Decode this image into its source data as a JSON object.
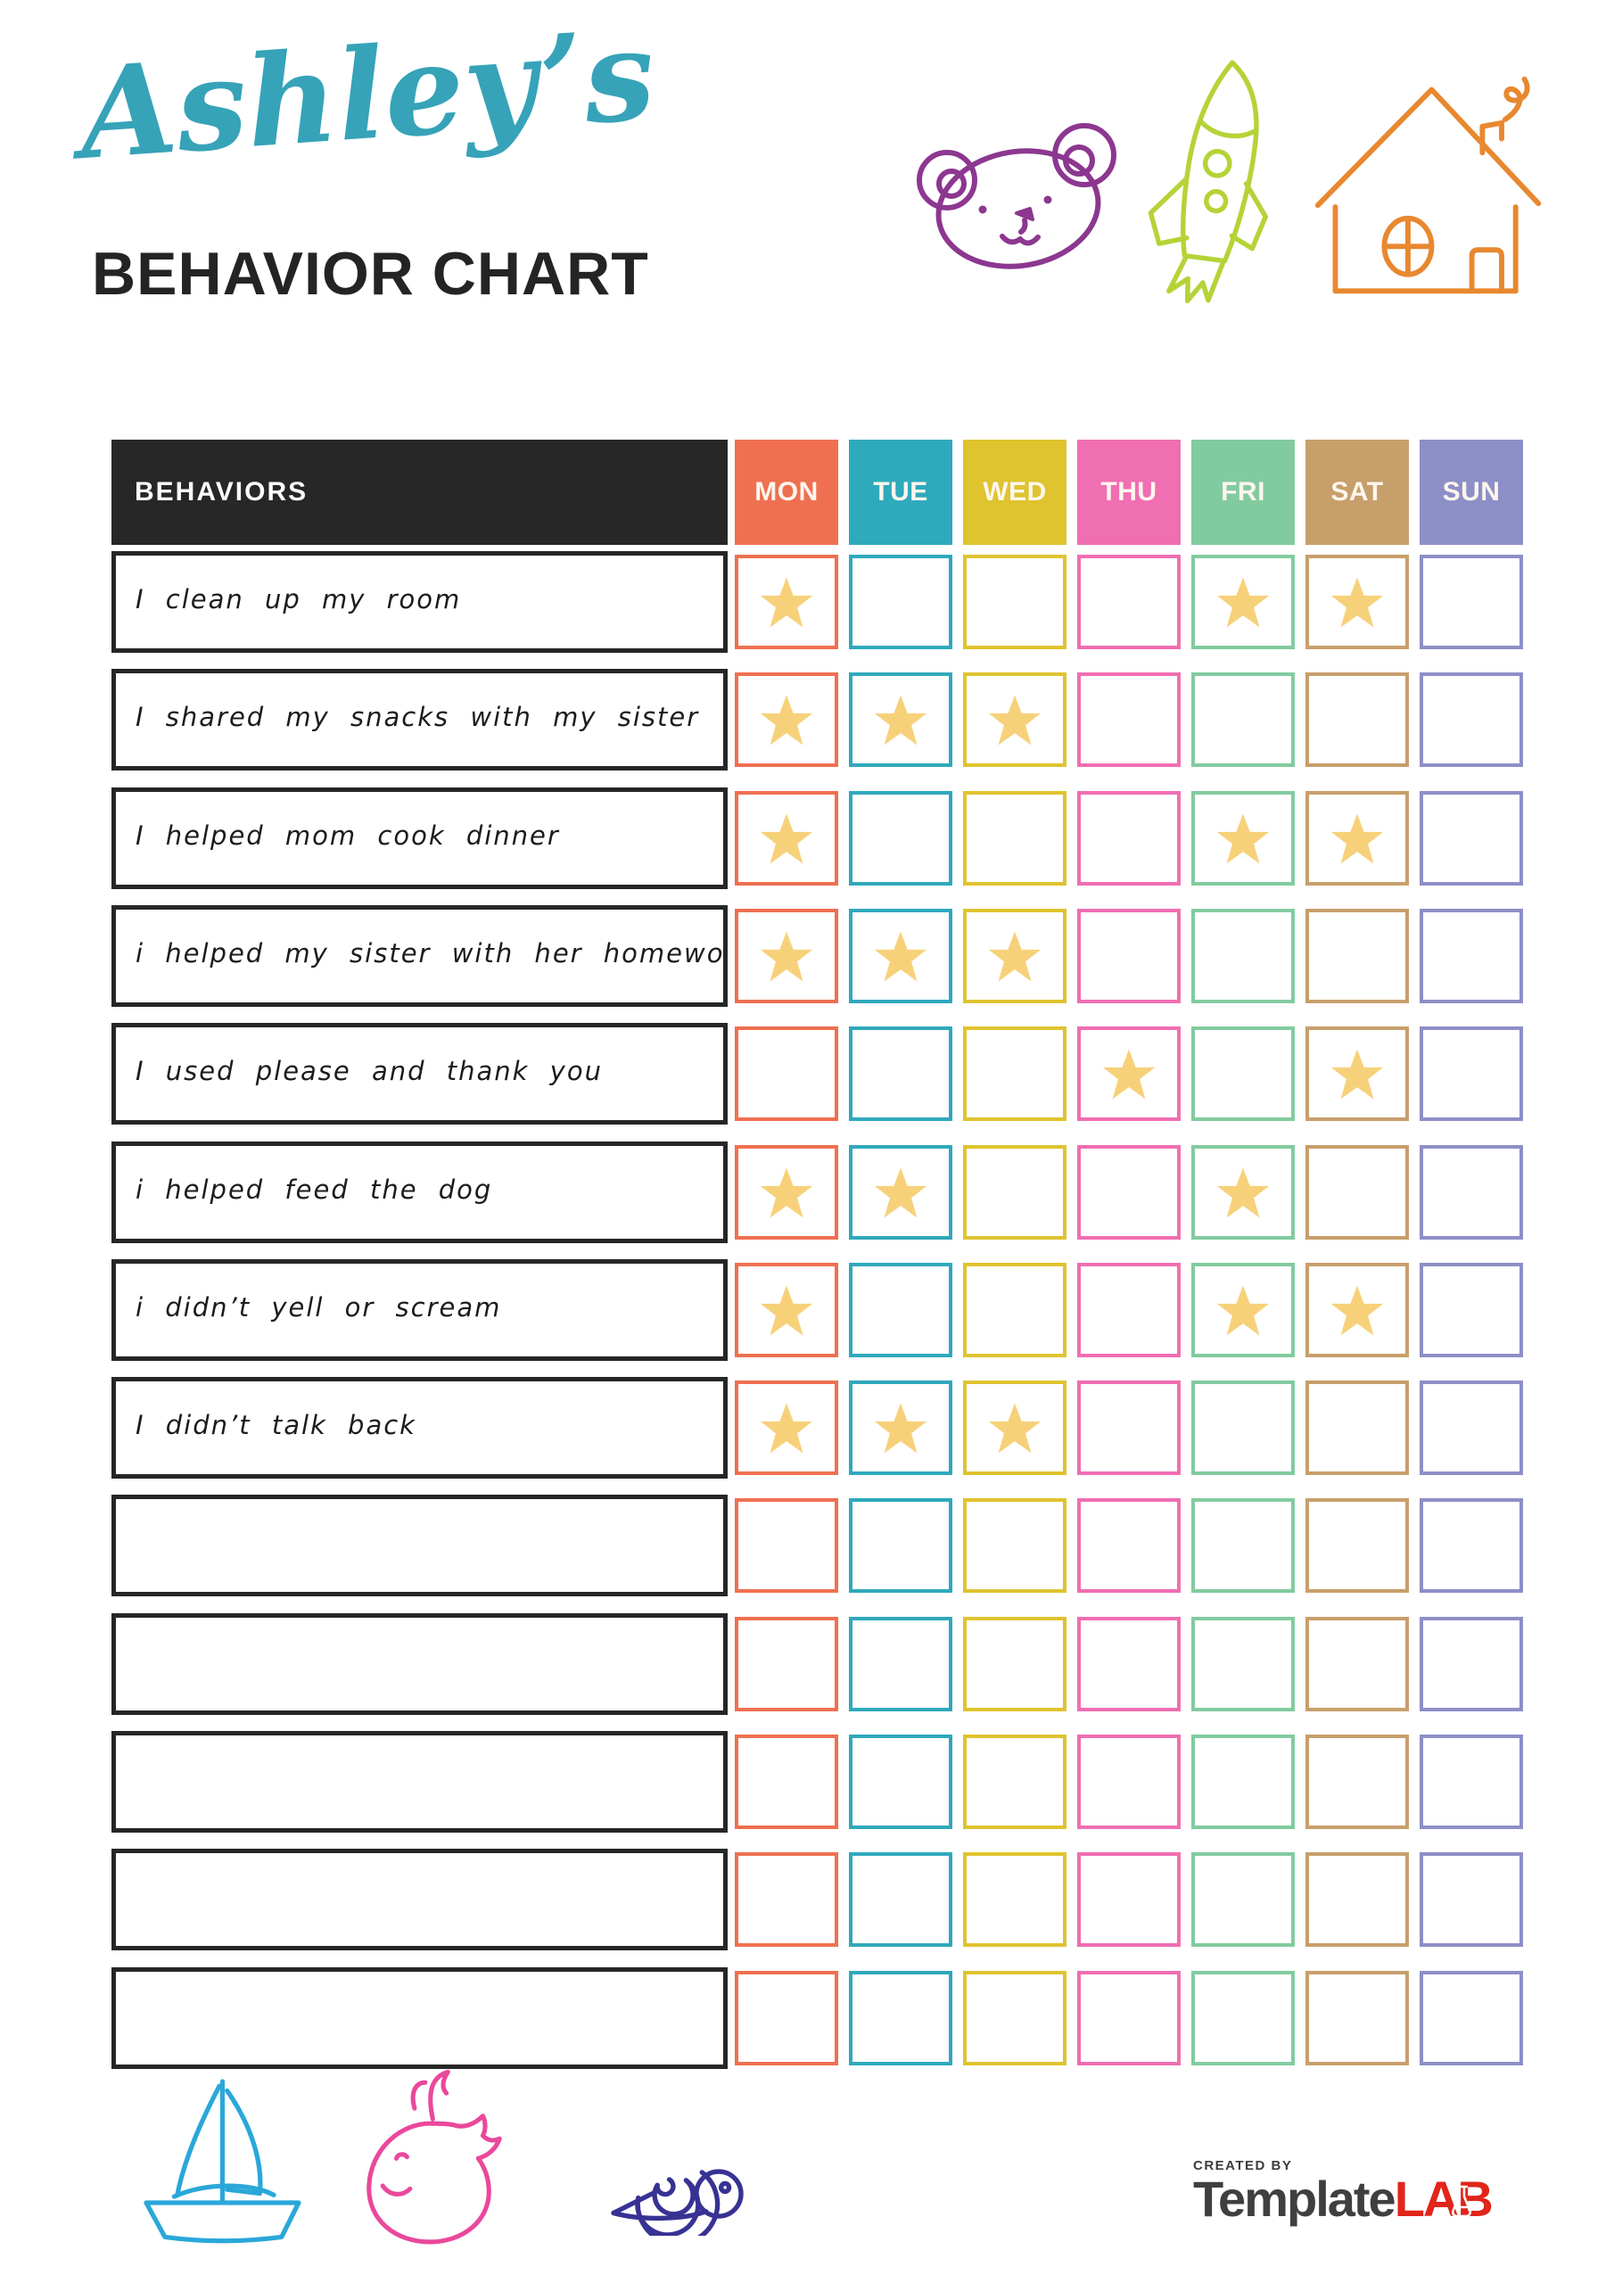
{
  "header": {
    "name_script": "Ashley’s",
    "name_color": "#36a3b8",
    "title": "BEHAVIOR CHART"
  },
  "table": {
    "behaviors_label": "BEHAVIORS",
    "header_bg": "#272727",
    "star_color": "#f7d17a",
    "days": [
      {
        "label": "MON",
        "color": "#ef7050"
      },
      {
        "label": "TUE",
        "color": "#2fa9bc"
      },
      {
        "label": "WED",
        "color": "#dfc32f"
      },
      {
        "label": "THU",
        "color": "#f06eb2"
      },
      {
        "label": "FRI",
        "color": "#82cb9f"
      },
      {
        "label": "SAT",
        "color": "#c79f6b"
      },
      {
        "label": "SUN",
        "color": "#8d8fc7"
      }
    ],
    "rows": [
      {
        "label": "I clean up my room",
        "stars": [
          "MON",
          "FRI",
          "SAT"
        ]
      },
      {
        "label": "I shared my snacks with my sister",
        "stars": [
          "MON",
          "TUE",
          "WED"
        ]
      },
      {
        "label": "I helped mom cook dinner",
        "stars": [
          "MON",
          "FRI",
          "SAT"
        ]
      },
      {
        "label": "i helped my sister with her homework",
        "stars": [
          "MON",
          "TUE",
          "WED"
        ]
      },
      {
        "label": "I used please and thank you",
        "stars": [
          "THU",
          "SAT"
        ]
      },
      {
        "label": "i helped feed the dog",
        "stars": [
          "MON",
          "TUE",
          "FRI"
        ]
      },
      {
        "label": "i didn’t yell or scream",
        "stars": [
          "MON",
          "FRI",
          "SAT"
        ]
      },
      {
        "label": "I didn’t talk back",
        "stars": [
          "MON",
          "TUE",
          "WED"
        ]
      },
      {
        "label": "",
        "stars": []
      },
      {
        "label": "",
        "stars": []
      },
      {
        "label": "",
        "stars": []
      },
      {
        "label": "",
        "stars": []
      },
      {
        "label": "",
        "stars": []
      }
    ]
  },
  "doodles": {
    "colors": {
      "bear": "#8c3790",
      "rocket": "#b5d337",
      "house": "#e8882f",
      "sailboat": "#2aa7d9",
      "whale": "#ea489c",
      "snail": "#373293"
    }
  },
  "footer": {
    "created_by": "CREATED BY",
    "brand_first": "Template",
    "brand_second": "LAB",
    "brand_color_first": "#3f3f3f",
    "brand_color_second": "#e1251b"
  }
}
